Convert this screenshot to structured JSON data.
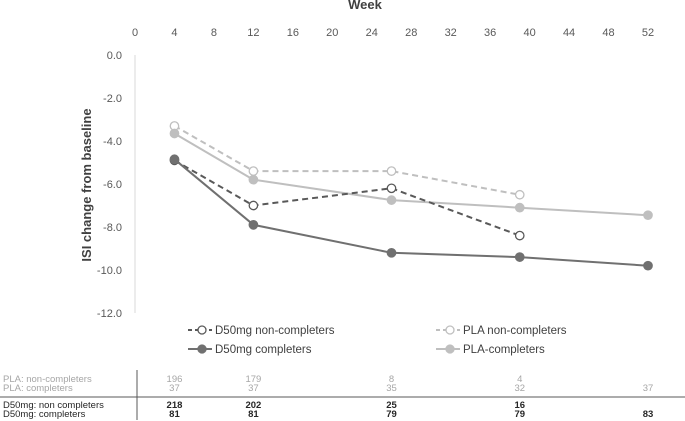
{
  "chart_data": {
    "type": "line",
    "title": "",
    "xlabel": "Week",
    "ylabel": "ISI change from baseline",
    "xlim": [
      0,
      52
    ],
    "ylim": [
      -12,
      0
    ],
    "x_ticks": [
      "0",
      "4",
      "8",
      "12",
      "16",
      "20",
      "24",
      "28",
      "32",
      "36",
      "40",
      "44",
      "48",
      "52"
    ],
    "y_ticks": [
      "0.0",
      "-2.0",
      "-4.0",
      "-6.0",
      "-8.0",
      "-10.0",
      "-12.0"
    ],
    "grid": false,
    "legend_position": "bottom",
    "series": [
      {
        "name": "D50mg non-completers",
        "x": [
          4,
          12,
          26,
          39
        ],
        "y": [
          -4.9,
          -7.0,
          -6.2,
          -8.4
        ],
        "color": "#595959",
        "dashed": true,
        "marker": "open-circle"
      },
      {
        "name": "PLA non-completers",
        "x": [
          4,
          12,
          26,
          39
        ],
        "y": [
          -3.3,
          -5.4,
          -5.4,
          -6.5
        ],
        "color": "#bfbfbf",
        "dashed": true,
        "marker": "open-circle"
      },
      {
        "name": "D50mg completers",
        "x": [
          4,
          12,
          26,
          39,
          52
        ],
        "y": [
          -4.85,
          -7.9,
          -9.2,
          -9.4,
          -9.8
        ],
        "color": "#707070",
        "dashed": false,
        "marker": "filled-circle"
      },
      {
        "name": "PLA-completers",
        "x": [
          4,
          12,
          26,
          39,
          52
        ],
        "y": [
          -3.65,
          -5.8,
          -6.75,
          -7.1,
          -7.45
        ],
        "color": "#bfbfbf",
        "dashed": false,
        "marker": "filled-circle"
      }
    ],
    "table": {
      "rows": [
        {
          "label": "PLA: non-completers",
          "color": "#a6a6a6",
          "bold": false,
          "values": [
            {
              "x": 4,
              "v": "196"
            },
            {
              "x": 12,
              "v": "179"
            },
            {
              "x": 26,
              "v": "8"
            },
            {
              "x": 39,
              "v": "4"
            }
          ]
        },
        {
          "label": "PLA: completers",
          "color": "#a6a6a6",
          "bold": false,
          "values": [
            {
              "x": 4,
              "v": "37"
            },
            {
              "x": 12,
              "v": "37"
            },
            {
              "x": 26,
              "v": "35"
            },
            {
              "x": 39,
              "v": "32"
            },
            {
              "x": 52,
              "v": "37"
            }
          ]
        },
        {
          "label": "D50mg: non completers",
          "color": "#262626",
          "bold": true,
          "values": [
            {
              "x": 4,
              "v": "218"
            },
            {
              "x": 12,
              "v": "202"
            },
            {
              "x": 26,
              "v": "25"
            },
            {
              "x": 39,
              "v": "16"
            }
          ]
        },
        {
          "label": "D50mg: completers",
          "color": "#262626",
          "bold": true,
          "values": [
            {
              "x": 4,
              "v": "81"
            },
            {
              "x": 12,
              "v": "81"
            },
            {
              "x": 26,
              "v": "79"
            },
            {
              "x": 39,
              "v": "79"
            },
            {
              "x": 52,
              "v": "83"
            }
          ]
        }
      ]
    }
  }
}
